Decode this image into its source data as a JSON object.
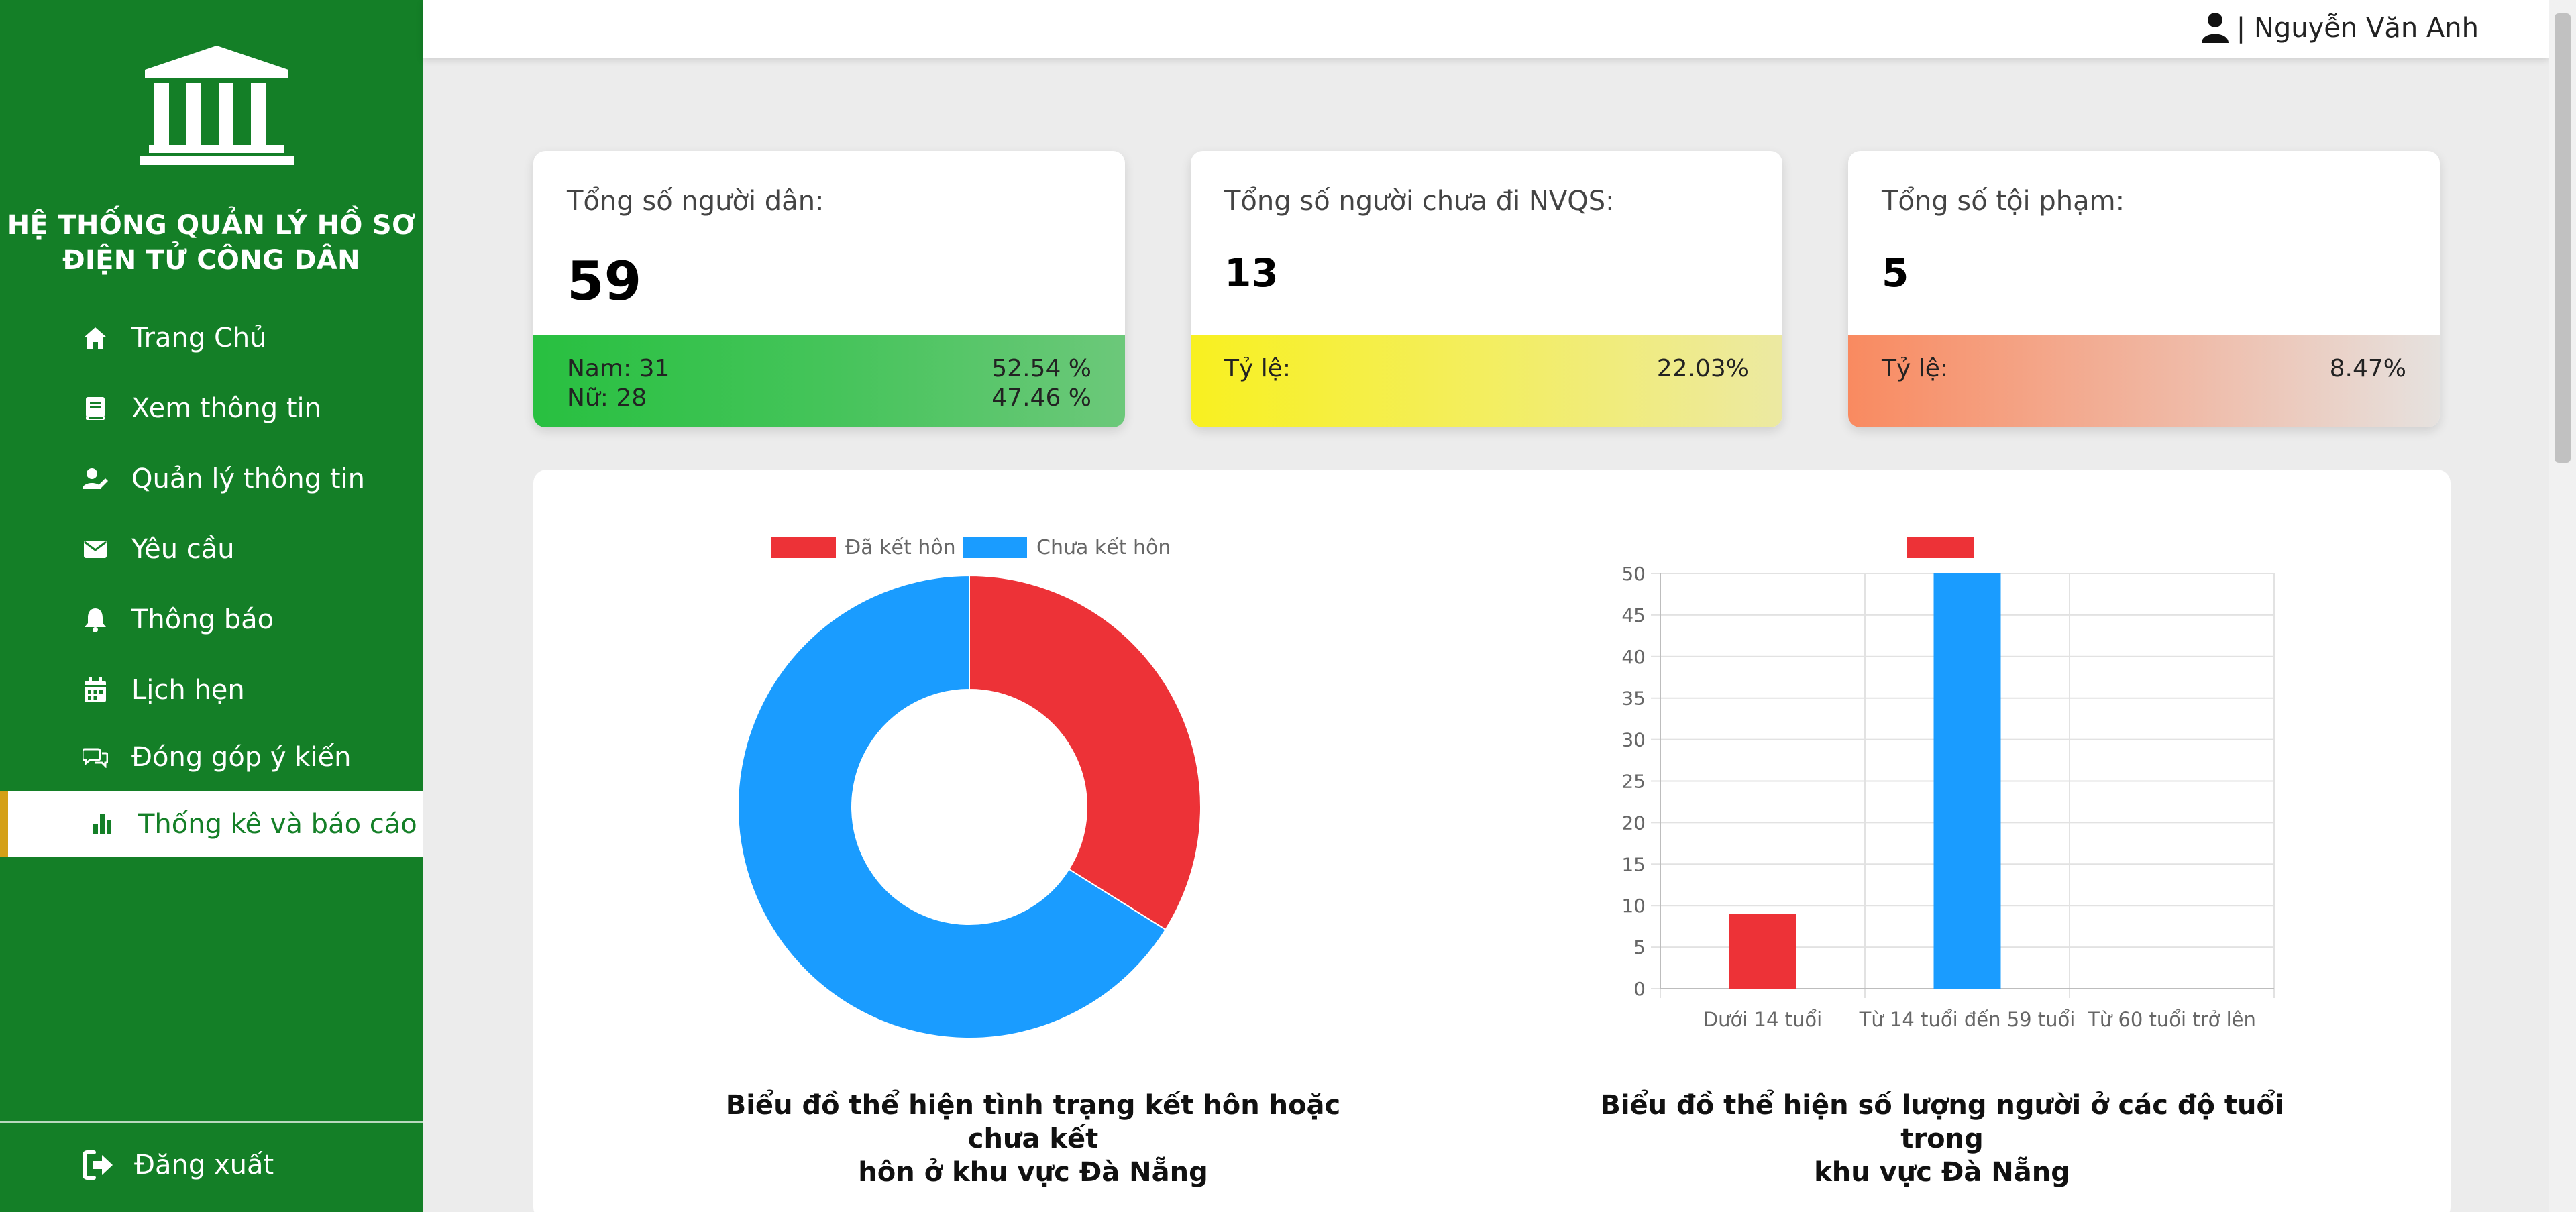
{
  "app": {
    "title": "HỆ THỐNG QUẢN LÝ HỒ SƠ ĐIỆN TỬ CÔNG DÂN",
    "title_line1": "HỆ THỐNG QUẢN LÝ HỒ SƠ",
    "title_line2": "ĐIỆN TỬ CÔNG DÂN",
    "logo_icon": "courthouse-icon"
  },
  "sidebar": {
    "items": [
      {
        "label": "Trang Chủ",
        "icon": "home-icon"
      },
      {
        "label": "Xem thông tin",
        "icon": "book-icon"
      },
      {
        "label": "Quản lý thông tin",
        "icon": "user-edit-icon"
      },
      {
        "label": "Yêu cầu",
        "icon": "envelope-icon"
      },
      {
        "label": "Thông báo",
        "icon": "bell-icon"
      },
      {
        "label": "Lịch hẹn",
        "icon": "calendar-icon"
      },
      {
        "label": "Đóng góp ý kiến",
        "icon": "comments-icon"
      },
      {
        "label": "Thống kê và báo cáo",
        "icon": "bar-chart-icon",
        "active": true
      }
    ],
    "logout_label": "Đăng xuất"
  },
  "header": {
    "user_text": "| Nguyễn Văn Anh"
  },
  "stats": {
    "citizens": {
      "label": "Tổng số người dân:",
      "value": "59",
      "male_label": "Nam: 31",
      "female_label": "Nữ: 28",
      "male_pct": "52.54 %",
      "female_pct": "47.46 %"
    },
    "military": {
      "label": "Tổng số người chưa đi NVQS:",
      "value": "13",
      "ratio_label": "Tỷ lệ:",
      "ratio": "22.03%"
    },
    "criminals": {
      "label": "Tổng số tội phạm:",
      "value": "5",
      "ratio_label": "Tỷ lệ:",
      "ratio": "8.47%"
    }
  },
  "colors": {
    "sidebar": "#147f27",
    "red": "#ed3237",
    "blue": "#1a9cff"
  },
  "chart_data": [
    {
      "type": "doughnut",
      "labels": [
        "Đã kết hôn",
        "Chưa kết hôn"
      ],
      "values": [
        20,
        39
      ],
      "colors": [
        "#ed3237",
        "#1a9cff"
      ],
      "legend": "top",
      "caption": "Biểu đồ thể hiện tình trạng kết hôn hoặc chưa kết hôn ở khu vực Đà Nẵng",
      "caption_line1": "Biểu đồ thể hiện tình trạng kết hôn hoặc chưa kết",
      "caption_line2": "hôn ở khu vực Đà Nẵng"
    },
    {
      "type": "bar",
      "categories": [
        "Dưới 14 tuổi",
        "Từ 14 tuổi đến 59 tuổi",
        "Từ 60 tuổi trở lên"
      ],
      "values": [
        9,
        50,
        0
      ],
      "bar_colors": [
        "#ed3237",
        "#1a9cff",
        "#ed3237"
      ],
      "legend_swatch": "#ed3237",
      "ylim": [
        0,
        50
      ],
      "yticks": [
        0,
        5,
        10,
        15,
        20,
        25,
        30,
        35,
        40,
        45,
        50
      ],
      "grid": true,
      "caption": "Biểu đồ thể hiện số lượng người ở các độ tuổi trong khu vực Đà Nẵng",
      "caption_line1": "Biểu đồ thể hiện số lượng người ở các độ tuổi trong",
      "caption_line2": "khu vực Đà Nẵng"
    }
  ]
}
